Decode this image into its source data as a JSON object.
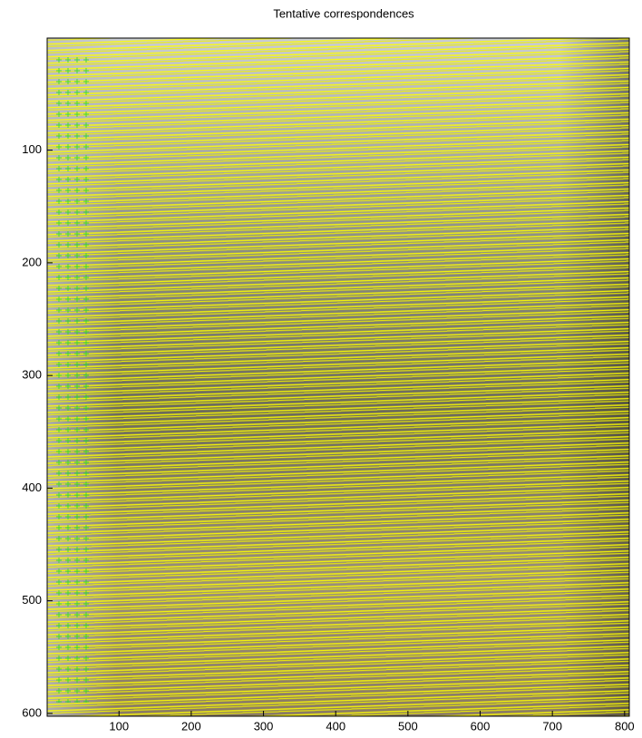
{
  "chart_data": {
    "type": "image",
    "title": "Tentative correspondences",
    "xlim": [
      0.5,
      806.5
    ],
    "ylim": [
      0.5,
      602.5
    ],
    "y_reversed": true,
    "xticks": [
      100,
      200,
      300,
      400,
      500,
      600,
      700,
      800
    ],
    "yticks": [
      100,
      200,
      300,
      400,
      500,
      600
    ]
  }
}
